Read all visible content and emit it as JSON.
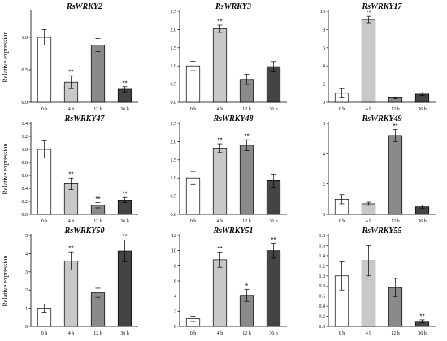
{
  "ylabel": "Relative expression",
  "colors": [
    "#ffffff",
    "#c8c8c8",
    "#8a8a8a",
    "#444444"
  ],
  "chart_data": [
    {
      "type": "bar",
      "title": "RsWRKY2",
      "categories": [
        "0 h",
        "4 h",
        "12 h",
        "36 h"
      ],
      "values": [
        1.0,
        0.31,
        0.88,
        0.2
      ],
      "errors": [
        0.12,
        0.1,
        0.1,
        0.04
      ],
      "significance": [
        "",
        "**",
        "",
        "**"
      ],
      "ylim": [
        0,
        1.4
      ],
      "yticks": [
        "0.0",
        "0.5",
        "1.0"
      ],
      "ytick_values": [
        0,
        0.5,
        1.0
      ]
    },
    {
      "type": "bar",
      "title": "RsWRKY3",
      "categories": [
        "0 h",
        "4 h",
        "12 h",
        "36 h"
      ],
      "values": [
        1.0,
        2.02,
        0.63,
        0.98
      ],
      "errors": [
        0.13,
        0.1,
        0.14,
        0.14
      ],
      "significance": [
        "",
        "**",
        "",
        ""
      ],
      "ylim": [
        0,
        2.5
      ],
      "yticks": [
        "0.0",
        "0.5",
        "1.0",
        "1.5",
        "2.0",
        "2.5"
      ],
      "ytick_values": [
        0,
        0.5,
        1.0,
        1.5,
        2.0,
        2.5
      ]
    },
    {
      "type": "bar",
      "title": "RsWRKY17",
      "categories": [
        "0 h",
        "4 h",
        "12 h",
        "36 h"
      ],
      "values": [
        1.0,
        9.1,
        0.5,
        0.9
      ],
      "errors": [
        0.5,
        0.35,
        0.1,
        0.15
      ],
      "significance": [
        "",
        "**",
        "",
        ""
      ],
      "ylim": [
        0,
        10
      ],
      "yticks": [
        "0",
        "2",
        "4",
        "6",
        "8",
        "10"
      ],
      "ytick_values": [
        0,
        2,
        4,
        6,
        8,
        10
      ]
    },
    {
      "type": "bar",
      "title": "RsWRKY47",
      "categories": [
        "0 h",
        "4 h",
        "12 h",
        "36 h"
      ],
      "values": [
        1.0,
        0.47,
        0.14,
        0.22
      ],
      "errors": [
        0.13,
        0.09,
        0.04,
        0.04
      ],
      "significance": [
        "",
        "**",
        "**",
        "**"
      ],
      "ylim": [
        0,
        1.4
      ],
      "yticks": [
        "0.0",
        "0.2",
        "0.4",
        "0.6",
        "0.8",
        "1.0",
        "1.2",
        "1.4"
      ],
      "ytick_values": [
        0,
        0.2,
        0.4,
        0.6,
        0.8,
        1.0,
        1.2,
        1.4
      ]
    },
    {
      "type": "bar",
      "title": "RsWRKY48",
      "categories": [
        "0 h",
        "4 h",
        "12 h",
        "36 h"
      ],
      "values": [
        1.0,
        1.82,
        1.9,
        0.93
      ],
      "errors": [
        0.18,
        0.12,
        0.15,
        0.18
      ],
      "significance": [
        "",
        "**",
        "**",
        ""
      ],
      "ylim": [
        0,
        2.5
      ],
      "yticks": [
        "0.0",
        "0.5",
        "1.0",
        "1.5",
        "2.0",
        "2.5"
      ],
      "ytick_values": [
        0,
        0.5,
        1.0,
        1.5,
        2.0,
        2.5
      ]
    },
    {
      "type": "bar",
      "title": "RsWRKY49",
      "categories": [
        "0 h",
        "4 h",
        "12 h",
        "36 h"
      ],
      "values": [
        1.0,
        0.7,
        5.2,
        0.5
      ],
      "errors": [
        0.3,
        0.1,
        0.4,
        0.12
      ],
      "significance": [
        "",
        "",
        "**",
        ""
      ],
      "ylim": [
        0,
        6
      ],
      "yticks": [
        "0",
        "2",
        "4",
        "6"
      ],
      "ytick_values": [
        0,
        2,
        4,
        6
      ]
    },
    {
      "type": "bar",
      "title": "RsWRKY50",
      "categories": [
        "0 h",
        "4 h",
        "12 h",
        "36 h"
      ],
      "values": [
        1.0,
        3.6,
        1.85,
        4.15
      ],
      "errors": [
        0.22,
        0.5,
        0.25,
        0.6
      ],
      "significance": [
        "",
        "**",
        "",
        "**"
      ],
      "ylim": [
        0,
        5
      ],
      "yticks": [
        "0",
        "1",
        "2",
        "3",
        "4",
        "5"
      ],
      "ytick_values": [
        0,
        1,
        2,
        3,
        4,
        5
      ]
    },
    {
      "type": "bar",
      "title": "RsWRKY51",
      "categories": [
        "0 h",
        "4 h",
        "12 h",
        "36 h"
      ],
      "values": [
        1.0,
        8.8,
        4.1,
        10.0
      ],
      "errors": [
        0.35,
        1.0,
        0.8,
        1.0
      ],
      "significance": [
        "",
        "**",
        "*",
        "**"
      ],
      "ylim": [
        0,
        12
      ],
      "yticks": [
        "0",
        "2",
        "4",
        "6",
        "8",
        "10",
        "12"
      ],
      "ytick_values": [
        0,
        2,
        4,
        6,
        8,
        10,
        12
      ]
    },
    {
      "type": "bar",
      "title": "RsWRKY55",
      "categories": [
        "0 h",
        "4 h",
        "12 h",
        "36 h"
      ],
      "values": [
        1.0,
        1.3,
        0.77,
        0.1
      ],
      "errors": [
        0.28,
        0.3,
        0.18,
        0.03
      ],
      "significance": [
        "",
        "",
        "",
        "**"
      ],
      "ylim": [
        0,
        1.8
      ],
      "yticks": [
        "0.0",
        "0.2",
        "0.4",
        "0.6",
        "0.8",
        "1.0",
        "1.2",
        "1.4",
        "1.6",
        "1.8"
      ],
      "ytick_values": [
        0,
        0.2,
        0.4,
        0.6,
        0.8,
        1.0,
        1.2,
        1.4,
        1.6,
        1.8
      ]
    }
  ]
}
